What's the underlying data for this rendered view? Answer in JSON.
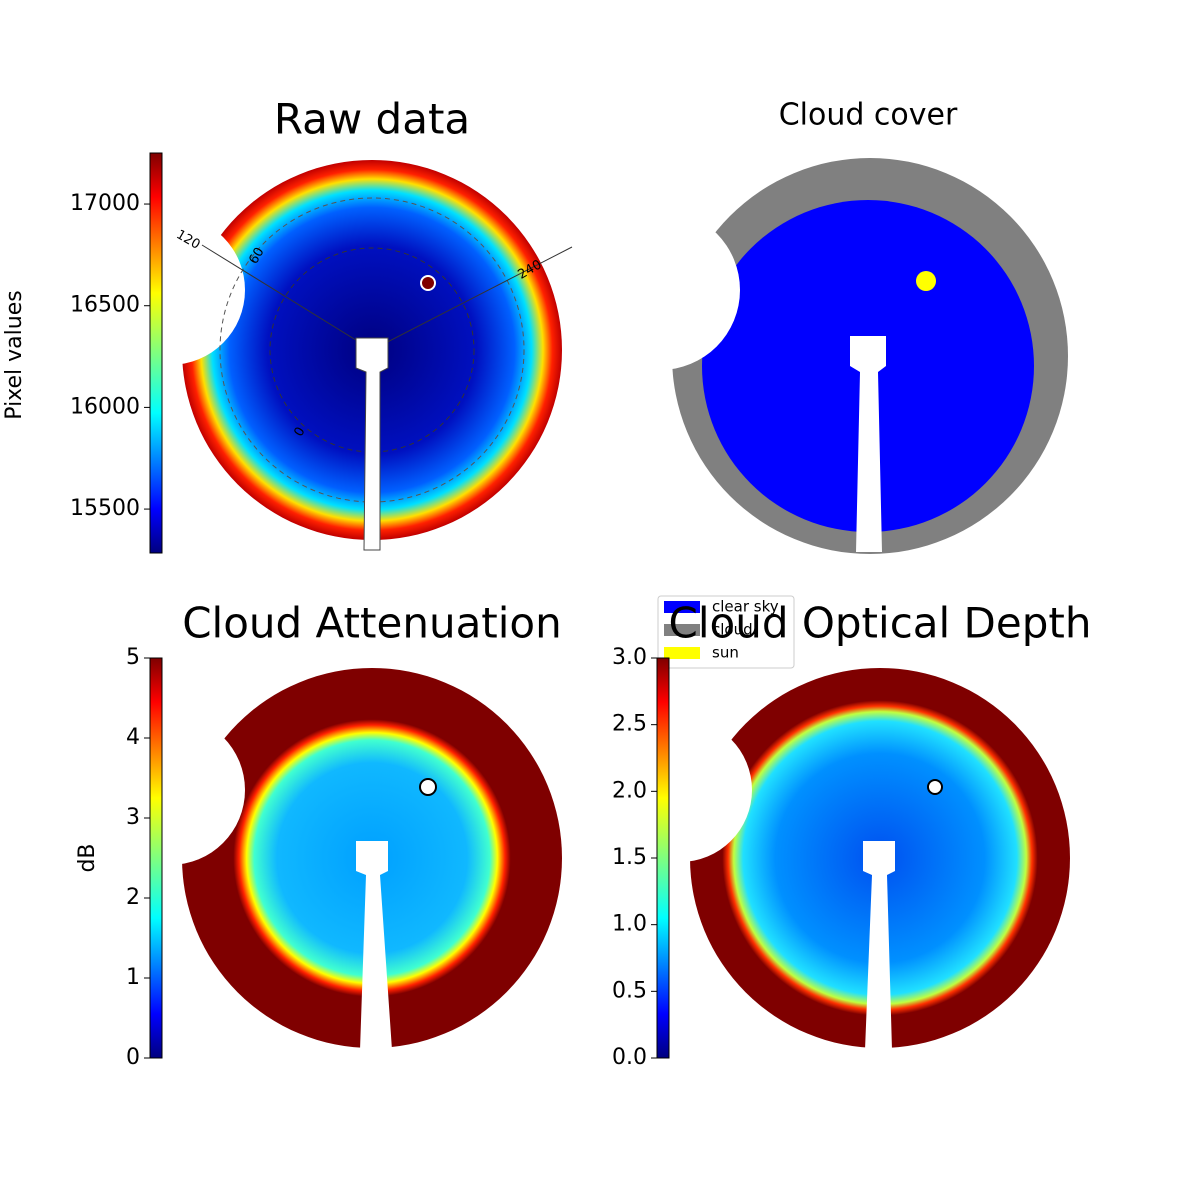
{
  "chart_data": [
    {
      "type": "image",
      "title": "Raw data",
      "colormap": "jet",
      "colorbar": {
        "label": "Pixel values",
        "ylim": [
          15284,
          17251
        ],
        "yticks": [
          15500,
          16000,
          16500,
          17000
        ]
      },
      "annotations": [
        "120",
        "60",
        "240",
        "0"
      ]
    },
    {
      "type": "image",
      "title": "Cloud cover",
      "series": [
        {
          "name": "clear sky",
          "color": "#0000ff"
        },
        {
          "name": "cloud",
          "color": "#808080"
        },
        {
          "name": "sun",
          "color": "#ffff00"
        }
      ]
    },
    {
      "type": "image",
      "title": "Cloud Attenuation",
      "colormap": "jet",
      "colorbar": {
        "label": "dB",
        "ylim": [
          0,
          5
        ],
        "yticks": [
          0,
          1,
          2,
          3,
          4,
          5
        ]
      }
    },
    {
      "type": "image",
      "title": "Cloud Optical Depth",
      "colormap": "jet",
      "colorbar": {
        "ylim": [
          0,
          3
        ],
        "yticks": [
          {
            "value": 0,
            "label": "0.0"
          },
          0.5,
          {
            "value": 1,
            "label": "1.0"
          },
          1.5,
          {
            "value": 2,
            "label": "2.0"
          },
          2.5,
          {
            "value": 3,
            "label": "3.0"
          }
        ]
      }
    }
  ]
}
